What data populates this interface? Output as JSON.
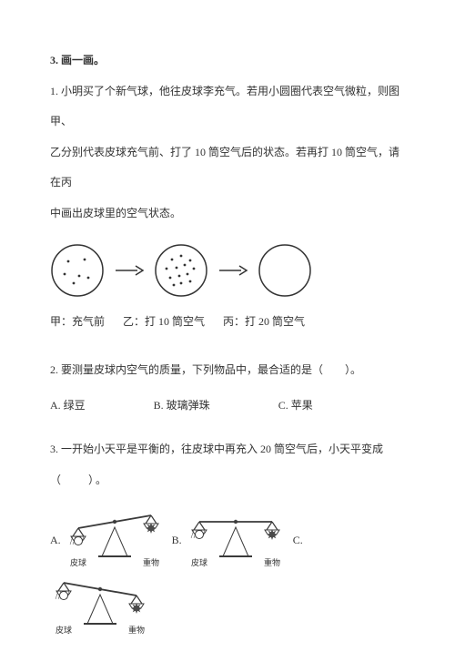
{
  "section_title": "3. 画一画。",
  "q1": {
    "text_line1": "1. 小明买了个新气球，他往皮球李充气。若用小圆圈代表空气微粒，则图甲、",
    "text_line2": "乙分别代表皮球充气前、打了 10 筒空气后的状态。若再打 10 筒空气，请在丙",
    "text_line3": "中画出皮球里的空气状态。",
    "caption_a": "甲：充气前",
    "caption_b": "乙：打 10 筒空气",
    "caption_c": "丙：打 20 筒空气",
    "diagram": {
      "circle_radius": 28,
      "stroke": "#333333",
      "stroke_width": 1.5,
      "dot_radius": 1.4,
      "dot_fill": "#333333",
      "circle_a_dots": [
        [
          -10,
          -10
        ],
        [
          8,
          -12
        ],
        [
          -14,
          4
        ],
        [
          2,
          6
        ],
        [
          12,
          8
        ],
        [
          -4,
          14
        ]
      ],
      "circle_b_dots": [
        [
          -10,
          -12
        ],
        [
          0,
          -16
        ],
        [
          10,
          -11
        ],
        [
          -16,
          -2
        ],
        [
          -5,
          -3
        ],
        [
          4,
          -6
        ],
        [
          14,
          -2
        ],
        [
          -12,
          8
        ],
        [
          -2,
          6
        ],
        [
          7,
          4
        ],
        [
          0,
          14
        ],
        [
          10,
          12
        ],
        [
          -8,
          16
        ]
      ],
      "arrow_color": "#333333"
    }
  },
  "q2": {
    "text": "2. 要测量皮球内空气的质量，下列物品中，最合适的是（　　）。",
    "opt_a": "A. 绿豆",
    "opt_b": "B. 玻璃弹珠",
    "opt_c": "C. 苹果"
  },
  "q3": {
    "text_line1": "3. 一开始小天平是平衡的，往皮球中再充入 20 筒空气后，小天平变成",
    "text_line2": "（　　）。",
    "opt_a": "A.",
    "opt_b": "B.",
    "opt_c": "C.",
    "balance": {
      "stroke": "#3a3a3a",
      "fill_dark": "#4a4a4a",
      "label_left": "皮球",
      "label_right": "重物",
      "font_size": 9
    }
  }
}
